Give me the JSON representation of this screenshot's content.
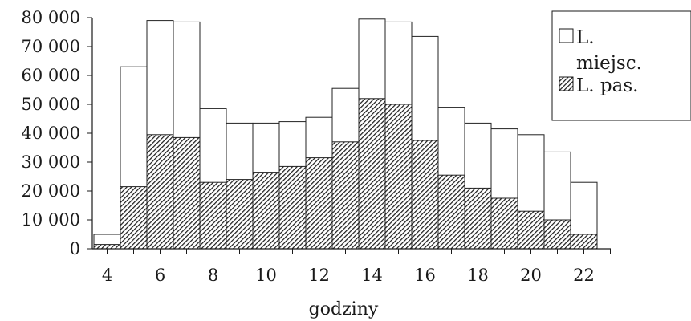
{
  "chart_data": {
    "type": "bar",
    "stacked": "overlay",
    "x": [
      4,
      5,
      6,
      7,
      8,
      9,
      10,
      11,
      12,
      13,
      14,
      15,
      16,
      17,
      18,
      19,
      20,
      21,
      22
    ],
    "series": [
      {
        "name": "L. miejsc.",
        "fill": "white",
        "values": [
          5000,
          63000,
          79000,
          78500,
          48500,
          43500,
          43500,
          44000,
          45500,
          55500,
          79500,
          78500,
          73500,
          49000,
          43500,
          41500,
          39500,
          33500,
          23000
        ]
      },
      {
        "name": "L. pas.",
        "fill": "hatched",
        "values": [
          1500,
          21500,
          39500,
          38500,
          23000,
          24000,
          26500,
          28500,
          31500,
          37000,
          52000,
          50000,
          37500,
          25500,
          21000,
          17500,
          13000,
          10000,
          5000
        ]
      }
    ],
    "y_ticks": [
      "0",
      "10 000",
      "20 000",
      "30 000",
      "40 000",
      "50 000",
      "60 000",
      "70 000",
      "80 000"
    ],
    "x_ticks": [
      "4",
      "6",
      "8",
      "10",
      "12",
      "14",
      "16",
      "18",
      "20",
      "22"
    ],
    "xlabel": "godziny",
    "ylabel": "",
    "ylim": [
      0,
      80000
    ],
    "xlim": [
      3.5,
      23.5
    ],
    "grid": false,
    "legend": {
      "placement": "top-right",
      "items": [
        {
          "label_lines": [
            "L.",
            "miejsc."
          ],
          "series": "L. miejsc."
        },
        {
          "label_lines": [
            "L. pas."
          ],
          "series": "L. pas."
        }
      ]
    },
    "colors": {
      "axis": "#1a1a1a",
      "bar_outline": "#222222",
      "hatch": "#1a1a1a",
      "background": "#ffffff"
    }
  }
}
